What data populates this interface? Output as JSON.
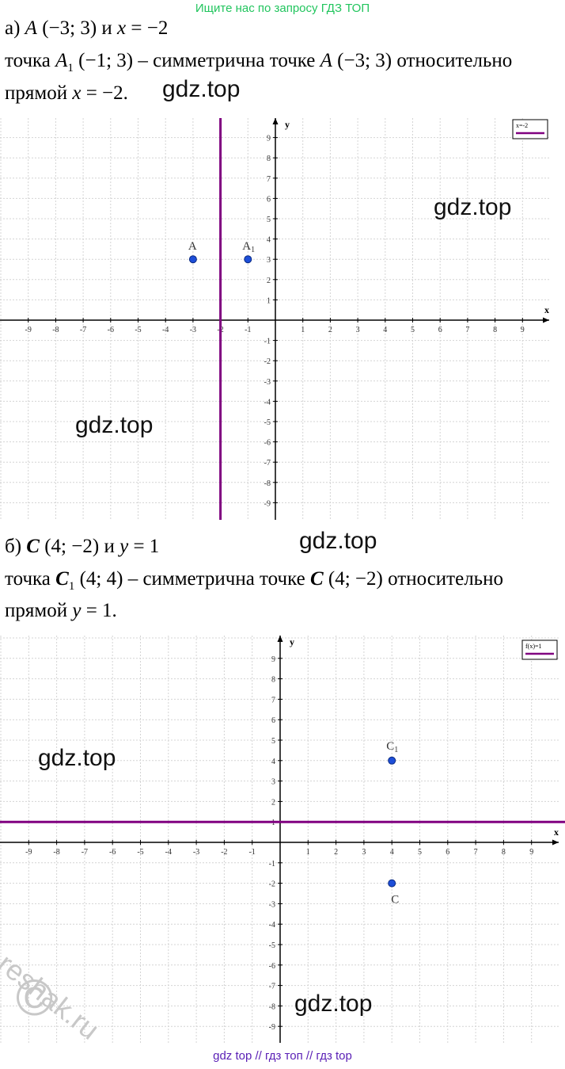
{
  "header": {
    "link_text": "Ищите нас по запросу ГДЗ ТОП"
  },
  "part_a": {
    "label": "а)",
    "point": "A",
    "point_coords": "(−3; 3)",
    "conj": "и",
    "line_eq_lhs": "x",
    "line_eq_rhs": "= −2",
    "text_lead": "точка",
    "image_point": "A",
    "image_sub": "1",
    "image_coords": "(−1; 3)",
    "text_mid": "– симметрична точке",
    "text_orig": "A",
    "text_orig_coords": "(−3; 3)",
    "text_rel": "относительно",
    "text_line": "прямой",
    "text_line_var": "x",
    "text_line_eq": "= −2."
  },
  "part_b": {
    "label": "б)",
    "point": "C",
    "point_coords": "(4; −2)",
    "conj": "и",
    "line_eq_lhs": "y",
    "line_eq_rhs": "= 1",
    "text_lead": "точка",
    "image_point": "C",
    "image_sub": "1",
    "image_coords": "(4; 4)",
    "text_mid": "– симметрична точке",
    "text_orig": "C",
    "text_orig_coords": "(4; −2)",
    "text_rel": "относительно",
    "text_line": "прямой",
    "text_line_var": "y",
    "text_line_eq": "= 1."
  },
  "watermarks": {
    "gdz": "gdz.top",
    "reshak": "reshak.ru",
    "copyright": "©"
  },
  "footer": {
    "text": "gdz top  //  гдз топ  //  гдз top"
  },
  "colors": {
    "line": "#800080",
    "point": "#1d4ed8",
    "grid": "#d4d4d4",
    "header": "#22c55e",
    "footer": "#5b21b6"
  },
  "chart_data": [
    {
      "type": "scatter",
      "x_axis_label": "x",
      "y_axis_label": "y",
      "xlim": [
        -10,
        10
      ],
      "ylim": [
        -10,
        10
      ],
      "tick_labels": [
        "-9",
        "-8",
        "-7",
        "-6",
        "-5",
        "-4",
        "-3",
        "-2",
        "-1",
        "1",
        "2",
        "3",
        "4",
        "5",
        "6",
        "7",
        "8",
        "9"
      ],
      "grid": true,
      "legend": {
        "label": "x=-2",
        "placement": "top-right"
      },
      "reference_line": {
        "orientation": "vertical",
        "value": -2
      },
      "points": [
        {
          "label": "A",
          "x": -3,
          "y": 3
        },
        {
          "label": "A1",
          "x": -1,
          "y": 3
        }
      ]
    },
    {
      "type": "scatter",
      "x_axis_label": "x",
      "y_axis_label": "y",
      "xlim": [
        -10,
        10
      ],
      "ylim": [
        -10,
        10
      ],
      "tick_labels": [
        "-9",
        "-8",
        "-7",
        "-6",
        "-5",
        "-4",
        "-3",
        "-2",
        "-1",
        "1",
        "2",
        "3",
        "4",
        "5",
        "6",
        "7",
        "8",
        "9"
      ],
      "grid": true,
      "legend": {
        "label": "f(x)=1",
        "placement": "top-right"
      },
      "reference_line": {
        "orientation": "horizontal",
        "value": 1
      },
      "points": [
        {
          "label": "C1",
          "x": 4,
          "y": 4
        },
        {
          "label": "C",
          "x": 4,
          "y": -2
        }
      ]
    }
  ]
}
